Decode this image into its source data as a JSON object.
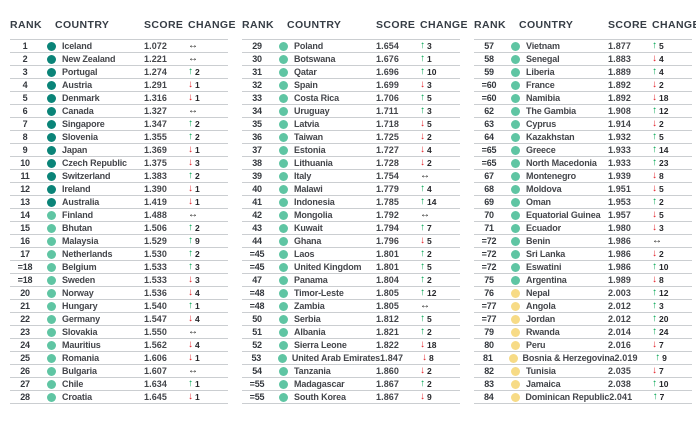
{
  "headers": {
    "rank": "RANK",
    "country": "COUNTRY",
    "score": "SCORE",
    "change": "CHANGE"
  },
  "icons": {
    "up_arrow": "↑",
    "down_arrow": "↓",
    "no_change_arrow": "↔"
  },
  "colors": {
    "tier1": "#0a8478",
    "tier2": "#5fc5a3",
    "tier3": "#f7db86",
    "up": "#00a551",
    "down": "#e31f26",
    "same": "#1d1d1b",
    "header_text": "#363d45",
    "row_line": "#cbced1"
  },
  "columns": [
    {
      "rows": [
        {
          "rank": "1",
          "country": "Iceland",
          "score": "1.072",
          "tier": 1,
          "change": {
            "dir": "same"
          }
        },
        {
          "rank": "2",
          "country": "New Zealand",
          "score": "1.221",
          "tier": 1,
          "change": {
            "dir": "same"
          }
        },
        {
          "rank": "3",
          "country": "Portugal",
          "score": "1.274",
          "tier": 1,
          "change": {
            "dir": "up",
            "value": 2
          }
        },
        {
          "rank": "4",
          "country": "Austria",
          "score": "1.291",
          "tier": 1,
          "change": {
            "dir": "down",
            "value": 1
          }
        },
        {
          "rank": "5",
          "country": "Denmark",
          "score": "1.316",
          "tier": 1,
          "change": {
            "dir": "down",
            "value": 1
          }
        },
        {
          "rank": "6",
          "country": "Canada",
          "score": "1.327",
          "tier": 1,
          "change": {
            "dir": "same"
          }
        },
        {
          "rank": "7",
          "country": "Singapore",
          "score": "1.347",
          "tier": 1,
          "change": {
            "dir": "up",
            "value": 2
          }
        },
        {
          "rank": "8",
          "country": "Slovenia",
          "score": "1.355",
          "tier": 1,
          "change": {
            "dir": "up",
            "value": 2
          }
        },
        {
          "rank": "9",
          "country": "Japan",
          "score": "1.369",
          "tier": 1,
          "change": {
            "dir": "down",
            "value": 1
          }
        },
        {
          "rank": "10",
          "country": "Czech Republic",
          "score": "1.375",
          "tier": 1,
          "change": {
            "dir": "down",
            "value": 3
          }
        },
        {
          "rank": "11",
          "country": "Switzerland",
          "score": "1.383",
          "tier": 1,
          "change": {
            "dir": "up",
            "value": 2
          }
        },
        {
          "rank": "12",
          "country": "Ireland",
          "score": "1.390",
          "tier": 1,
          "change": {
            "dir": "down",
            "value": 1
          }
        },
        {
          "rank": "13",
          "country": "Australia",
          "score": "1.419",
          "tier": 1,
          "change": {
            "dir": "down",
            "value": 1
          }
        },
        {
          "rank": "14",
          "country": "Finland",
          "score": "1.488",
          "tier": 2,
          "change": {
            "dir": "same"
          }
        },
        {
          "rank": "15",
          "country": "Bhutan",
          "score": "1.506",
          "tier": 2,
          "change": {
            "dir": "up",
            "value": 2
          }
        },
        {
          "rank": "16",
          "country": "Malaysia",
          "score": "1.529",
          "tier": 2,
          "change": {
            "dir": "up",
            "value": 9
          }
        },
        {
          "rank": "17",
          "country": "Netherlands",
          "score": "1.530",
          "tier": 2,
          "change": {
            "dir": "up",
            "value": 2
          }
        },
        {
          "rank": "=18",
          "country": "Belgium",
          "score": "1.533",
          "tier": 2,
          "change": {
            "dir": "up",
            "value": 3
          }
        },
        {
          "rank": "=18",
          "country": "Sweden",
          "score": "1.533",
          "tier": 2,
          "change": {
            "dir": "down",
            "value": 3
          }
        },
        {
          "rank": "20",
          "country": "Norway",
          "score": "1.536",
          "tier": 2,
          "change": {
            "dir": "down",
            "value": 4
          }
        },
        {
          "rank": "21",
          "country": "Hungary",
          "score": "1.540",
          "tier": 2,
          "change": {
            "dir": "up",
            "value": 1
          }
        },
        {
          "rank": "22",
          "country": "Germany",
          "score": "1.547",
          "tier": 2,
          "change": {
            "dir": "down",
            "value": 4
          }
        },
        {
          "rank": "23",
          "country": "Slovakia",
          "score": "1.550",
          "tier": 2,
          "change": {
            "dir": "same"
          }
        },
        {
          "rank": "24",
          "country": "Mauritius",
          "score": "1.562",
          "tier": 2,
          "change": {
            "dir": "down",
            "value": 4
          }
        },
        {
          "rank": "25",
          "country": "Romania",
          "score": "1.606",
          "tier": 2,
          "change": {
            "dir": "down",
            "value": 1
          }
        },
        {
          "rank": "26",
          "country": "Bulgaria",
          "score": "1.607",
          "tier": 2,
          "change": {
            "dir": "same"
          }
        },
        {
          "rank": "27",
          "country": "Chile",
          "score": "1.634",
          "tier": 2,
          "change": {
            "dir": "up",
            "value": 1
          }
        },
        {
          "rank": "28",
          "country": "Croatia",
          "score": "1.645",
          "tier": 2,
          "change": {
            "dir": "down",
            "value": 1
          }
        }
      ]
    },
    {
      "rows": [
        {
          "rank": "29",
          "country": "Poland",
          "score": "1.654",
          "tier": 2,
          "change": {
            "dir": "up",
            "value": 3
          }
        },
        {
          "rank": "30",
          "country": "Botswana",
          "score": "1.676",
          "tier": 2,
          "change": {
            "dir": "up",
            "value": 1
          }
        },
        {
          "rank": "31",
          "country": "Qatar",
          "score": "1.696",
          "tier": 2,
          "change": {
            "dir": "up",
            "value": 10
          }
        },
        {
          "rank": "32",
          "country": "Spain",
          "score": "1.699",
          "tier": 2,
          "change": {
            "dir": "down",
            "value": 3
          }
        },
        {
          "rank": "33",
          "country": "Costa Rica",
          "score": "1.706",
          "tier": 2,
          "change": {
            "dir": "up",
            "value": 5
          }
        },
        {
          "rank": "34",
          "country": "Uruguay",
          "score": "1.711",
          "tier": 2,
          "change": {
            "dir": "up",
            "value": 3
          }
        },
        {
          "rank": "35",
          "country": "Latvia",
          "score": "1.718",
          "tier": 2,
          "change": {
            "dir": "down",
            "value": 5
          }
        },
        {
          "rank": "36",
          "country": "Taiwan",
          "score": "1.725",
          "tier": 2,
          "change": {
            "dir": "down",
            "value": 2
          }
        },
        {
          "rank": "37",
          "country": "Estonia",
          "score": "1.727",
          "tier": 2,
          "change": {
            "dir": "down",
            "value": 4
          }
        },
        {
          "rank": "38",
          "country": "Lithuania",
          "score": "1.728",
          "tier": 2,
          "change": {
            "dir": "down",
            "value": 2
          }
        },
        {
          "rank": "39",
          "country": "Italy",
          "score": "1.754",
          "tier": 2,
          "change": {
            "dir": "same"
          }
        },
        {
          "rank": "40",
          "country": "Malawi",
          "score": "1.779",
          "tier": 2,
          "change": {
            "dir": "up",
            "value": 4
          }
        },
        {
          "rank": "41",
          "country": "Indonesia",
          "score": "1.785",
          "tier": 2,
          "change": {
            "dir": "up",
            "value": 14
          }
        },
        {
          "rank": "42",
          "country": "Mongolia",
          "score": "1.792",
          "tier": 2,
          "change": {
            "dir": "same"
          }
        },
        {
          "rank": "43",
          "country": "Kuwait",
          "score": "1.794",
          "tier": 2,
          "change": {
            "dir": "up",
            "value": 7
          }
        },
        {
          "rank": "44",
          "country": "Ghana",
          "score": "1.796",
          "tier": 2,
          "change": {
            "dir": "down",
            "value": 5
          }
        },
        {
          "rank": "=45",
          "country": "Laos",
          "score": "1.801",
          "tier": 2,
          "change": {
            "dir": "up",
            "value": 2
          }
        },
        {
          "rank": "=45",
          "country": "United Kingdom",
          "score": "1.801",
          "tier": 2,
          "change": {
            "dir": "up",
            "value": 5
          }
        },
        {
          "rank": "47",
          "country": "Panama",
          "score": "1.804",
          "tier": 2,
          "change": {
            "dir": "up",
            "value": 2
          }
        },
        {
          "rank": "=48",
          "country": "Timor-Leste",
          "score": "1.805",
          "tier": 2,
          "change": {
            "dir": "up",
            "value": 12
          }
        },
        {
          "rank": "=48",
          "country": "Zambia",
          "score": "1.805",
          "tier": 2,
          "change": {
            "dir": "same"
          }
        },
        {
          "rank": "50",
          "country": "Serbia",
          "score": "1.812",
          "tier": 2,
          "change": {
            "dir": "up",
            "value": 5
          }
        },
        {
          "rank": "51",
          "country": "Albania",
          "score": "1.821",
          "tier": 2,
          "change": {
            "dir": "up",
            "value": 2
          }
        },
        {
          "rank": "52",
          "country": "Sierra Leone",
          "score": "1.822",
          "tier": 2,
          "change": {
            "dir": "down",
            "value": 18
          }
        },
        {
          "rank": "53",
          "country": "United Arab Emirates",
          "score": "1.847",
          "tier": 2,
          "change": {
            "dir": "down",
            "value": 8
          }
        },
        {
          "rank": "54",
          "country": "Tanzania",
          "score": "1.860",
          "tier": 2,
          "change": {
            "dir": "down",
            "value": 2
          }
        },
        {
          "rank": "=55",
          "country": "Madagascar",
          "score": "1.867",
          "tier": 2,
          "change": {
            "dir": "up",
            "value": 2
          }
        },
        {
          "rank": "=55",
          "country": "South Korea",
          "score": "1.867",
          "tier": 2,
          "change": {
            "dir": "down",
            "value": 9
          }
        }
      ]
    },
    {
      "rows": [
        {
          "rank": "57",
          "country": "Vietnam",
          "score": "1.877",
          "tier": 2,
          "change": {
            "dir": "up",
            "value": 5
          }
        },
        {
          "rank": "58",
          "country": "Senegal",
          "score": "1.883",
          "tier": 2,
          "change": {
            "dir": "down",
            "value": 4
          }
        },
        {
          "rank": "59",
          "country": "Liberia",
          "score": "1.889",
          "tier": 2,
          "change": {
            "dir": "up",
            "value": 4
          }
        },
        {
          "rank": "=60",
          "country": "France",
          "score": "1.892",
          "tier": 2,
          "change": {
            "dir": "down",
            "value": 2
          }
        },
        {
          "rank": "=60",
          "country": "Namibia",
          "score": "1.892",
          "tier": 2,
          "change": {
            "dir": "down",
            "value": 18
          }
        },
        {
          "rank": "62",
          "country": "The Gambia",
          "score": "1.908",
          "tier": 2,
          "change": {
            "dir": "up",
            "value": 12
          }
        },
        {
          "rank": "63",
          "country": "Cyprus",
          "score": "1.914",
          "tier": 2,
          "change": {
            "dir": "down",
            "value": 2
          }
        },
        {
          "rank": "64",
          "country": "Kazakhstan",
          "score": "1.932",
          "tier": 2,
          "change": {
            "dir": "up",
            "value": 5
          }
        },
        {
          "rank": "=65",
          "country": "Greece",
          "score": "1.933",
          "tier": 2,
          "change": {
            "dir": "up",
            "value": 14
          }
        },
        {
          "rank": "=65",
          "country": "North Macedonia",
          "score": "1.933",
          "tier": 2,
          "change": {
            "dir": "up",
            "value": 23
          }
        },
        {
          "rank": "67",
          "country": "Montenegro",
          "score": "1.939",
          "tier": 2,
          "change": {
            "dir": "down",
            "value": 8
          }
        },
        {
          "rank": "68",
          "country": "Moldova",
          "score": "1.951",
          "tier": 2,
          "change": {
            "dir": "down",
            "value": 5
          }
        },
        {
          "rank": "69",
          "country": "Oman",
          "score": "1.953",
          "tier": 2,
          "change": {
            "dir": "up",
            "value": 2
          }
        },
        {
          "rank": "70",
          "country": "Equatorial Guinea",
          "score": "1.957",
          "tier": 2,
          "change": {
            "dir": "down",
            "value": 5
          }
        },
        {
          "rank": "71",
          "country": "Ecuador",
          "score": "1.980",
          "tier": 2,
          "change": {
            "dir": "down",
            "value": 3
          }
        },
        {
          "rank": "=72",
          "country": "Benin",
          "score": "1.986",
          "tier": 2,
          "change": {
            "dir": "same"
          }
        },
        {
          "rank": "=72",
          "country": "Sri Lanka",
          "score": "1.986",
          "tier": 2,
          "change": {
            "dir": "down",
            "value": 2
          }
        },
        {
          "rank": "=72",
          "country": "Eswatini",
          "score": "1.986",
          "tier": 2,
          "change": {
            "dir": "up",
            "value": 10
          }
        },
        {
          "rank": "75",
          "country": "Argentina",
          "score": "1.989",
          "tier": 2,
          "change": {
            "dir": "down",
            "value": 8
          }
        },
        {
          "rank": "76",
          "country": "Nepal",
          "score": "2.003",
          "tier": 3,
          "change": {
            "dir": "up",
            "value": 12
          }
        },
        {
          "rank": "=77",
          "country": "Angola",
          "score": "2.012",
          "tier": 3,
          "change": {
            "dir": "up",
            "value": 3
          }
        },
        {
          "rank": "=77",
          "country": "Jordan",
          "score": "2.012",
          "tier": 3,
          "change": {
            "dir": "up",
            "value": 20
          }
        },
        {
          "rank": "79",
          "country": "Rwanda",
          "score": "2.014",
          "tier": 3,
          "change": {
            "dir": "up",
            "value": 24
          }
        },
        {
          "rank": "80",
          "country": "Peru",
          "score": "2.016",
          "tier": 3,
          "change": {
            "dir": "down",
            "value": 7
          }
        },
        {
          "rank": "81",
          "country": "Bosnia & Herzegovina",
          "score": "2.019",
          "tier": 3,
          "change": {
            "dir": "up",
            "value": 9
          }
        },
        {
          "rank": "82",
          "country": "Tunisia",
          "score": "2.035",
          "tier": 3,
          "change": {
            "dir": "down",
            "value": 7
          }
        },
        {
          "rank": "83",
          "country": "Jamaica",
          "score": "2.038",
          "tier": 3,
          "change": {
            "dir": "up",
            "value": 10
          }
        },
        {
          "rank": "84",
          "country": "Dominican Republic",
          "score": "2.041",
          "tier": 3,
          "change": {
            "dir": "up",
            "value": 7
          }
        }
      ]
    }
  ]
}
